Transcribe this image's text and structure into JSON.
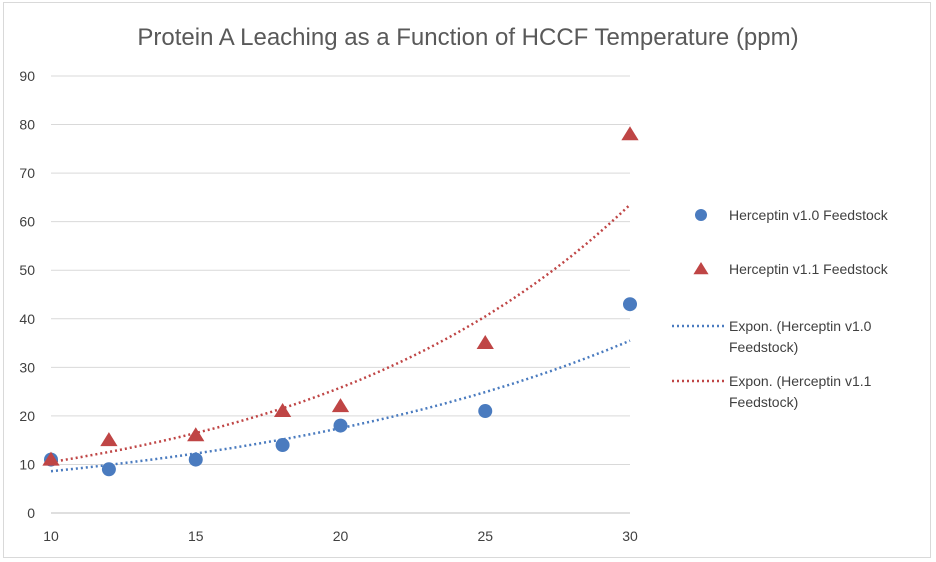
{
  "chart_data": {
    "type": "scatter",
    "title": "Protein A Leaching as a Function of HCCF Temperature (ppm)",
    "xlabel": "",
    "ylabel": "",
    "xlim": [
      10,
      30
    ],
    "ylim": [
      0,
      90
    ],
    "x_ticks": [
      10,
      15,
      20,
      25,
      30
    ],
    "y_ticks": [
      0,
      10,
      20,
      30,
      40,
      50,
      60,
      70,
      80,
      90
    ],
    "grid": "horizontal",
    "legend_position": "right",
    "series": [
      {
        "name": "Herceptin v1.0 Feedstock",
        "marker": "circle",
        "color": "#4a7bbf",
        "x": [
          10,
          12,
          15,
          18,
          20,
          25,
          30
        ],
        "y": [
          11,
          9,
          11,
          14,
          18,
          21,
          43
        ]
      },
      {
        "name": "Herceptin v1.1 Feedstock",
        "marker": "triangle",
        "color": "#bf4545",
        "x": [
          10,
          12,
          15,
          18,
          20,
          25,
          30
        ],
        "y": [
          11,
          15,
          16,
          21,
          22,
          35,
          78
        ]
      }
    ],
    "trendlines": [
      {
        "name": "Expon. (Herceptin v1.0 Feedstock)",
        "type": "exponential",
        "color": "#4a7bbf",
        "style": "dotted",
        "y_at_xmin": 8.6,
        "y_at_xmax": 35.5
      },
      {
        "name": "Expon. (Herceptin v1.1 Feedstock)",
        "type": "exponential",
        "color": "#bf4545",
        "style": "dotted",
        "y_at_xmin": 10.5,
        "y_at_xmax": 63.5
      }
    ],
    "legend": {
      "trend_line_1": [
        "Expon. (Herceptin v1.0",
        "Feedstock)"
      ],
      "trend_line_2": [
        "Expon. (Herceptin v1.1",
        "Feedstock)"
      ]
    }
  }
}
